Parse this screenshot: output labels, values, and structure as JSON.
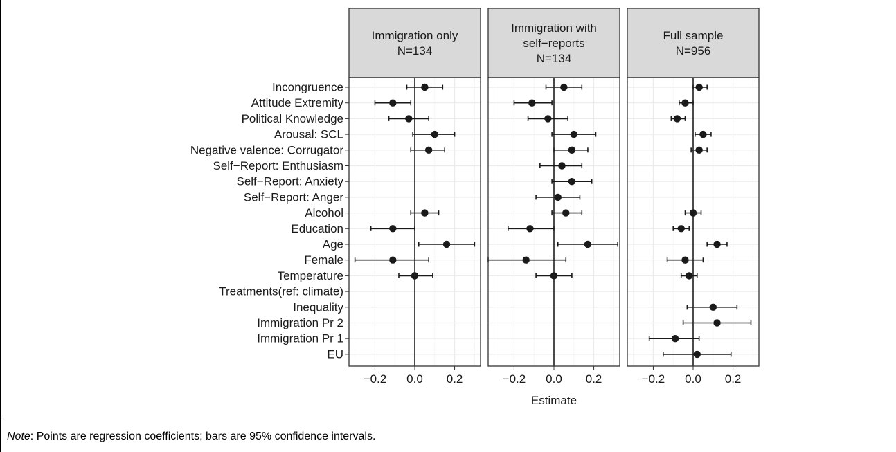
{
  "chart_data": {
    "type": "scatter",
    "subtype": "coefficient-plot",
    "xlabel": "Estimate",
    "xlim": [
      -0.33,
      0.33
    ],
    "xticks": [
      -0.2,
      0.0,
      0.2
    ],
    "xtick_labels": [
      "−0.2",
      "0.0",
      "0.2"
    ],
    "grid": true,
    "reference_line_x": 0,
    "terms": [
      "Incongruence",
      "Attitude Extremity",
      "Political Knowledge",
      "Arousal: SCL",
      "Negative valence: Corrugator",
      "Self−Report: Enthusiasm",
      "Self−Report: Anxiety",
      "Self−Report: Anger",
      "Alcohol",
      "Education",
      "Age",
      "Female",
      "Temperature",
      "Treatments(ref: climate)",
      "Inequality",
      "Immigration Pr 2",
      "Immigration Pr 1",
      "EU"
    ],
    "panels": [
      {
        "title_lines": [
          "Immigration only",
          "N=134"
        ],
        "estimates": [
          {
            "term": "Incongruence",
            "estimate": 0.05,
            "low": -0.04,
            "high": 0.14
          },
          {
            "term": "Attitude Extremity",
            "estimate": -0.11,
            "low": -0.2,
            "high": -0.02
          },
          {
            "term": "Political Knowledge",
            "estimate": -0.03,
            "low": -0.13,
            "high": 0.07
          },
          {
            "term": "Arousal: SCL",
            "estimate": 0.1,
            "low": -0.01,
            "high": 0.2
          },
          {
            "term": "Negative valence: Corrugator",
            "estimate": 0.07,
            "low": -0.02,
            "high": 0.15
          },
          {
            "term": "Alcohol",
            "estimate": 0.05,
            "low": -0.02,
            "high": 0.12
          },
          {
            "term": "Education",
            "estimate": -0.11,
            "low": -0.22,
            "high": 0.0
          },
          {
            "term": "Age",
            "estimate": 0.16,
            "low": 0.02,
            "high": 0.3
          },
          {
            "term": "Female",
            "estimate": -0.11,
            "low": -0.3,
            "high": 0.07
          },
          {
            "term": "Temperature",
            "estimate": 0.0,
            "low": -0.08,
            "high": 0.09
          }
        ]
      },
      {
        "title_lines": [
          "Immigration with",
          "self−reports",
          "N=134"
        ],
        "estimates": [
          {
            "term": "Incongruence",
            "estimate": 0.05,
            "low": -0.04,
            "high": 0.14
          },
          {
            "term": "Attitude Extremity",
            "estimate": -0.11,
            "low": -0.2,
            "high": -0.01
          },
          {
            "term": "Political Knowledge",
            "estimate": -0.03,
            "low": -0.13,
            "high": 0.07
          },
          {
            "term": "Arousal: SCL",
            "estimate": 0.1,
            "low": -0.01,
            "high": 0.21
          },
          {
            "term": "Negative valence: Corrugator",
            "estimate": 0.09,
            "low": 0.0,
            "high": 0.17
          },
          {
            "term": "Self−Report: Enthusiasm",
            "estimate": 0.04,
            "low": -0.07,
            "high": 0.14
          },
          {
            "term": "Self−Report: Anxiety",
            "estimate": 0.09,
            "low": -0.01,
            "high": 0.19
          },
          {
            "term": "Self−Report: Anger",
            "estimate": 0.02,
            "low": -0.09,
            "high": 0.13
          },
          {
            "term": "Alcohol",
            "estimate": 0.06,
            "low": -0.01,
            "high": 0.14
          },
          {
            "term": "Education",
            "estimate": -0.12,
            "low": -0.23,
            "high": 0.0
          },
          {
            "term": "Age",
            "estimate": 0.17,
            "low": 0.02,
            "high": 0.32
          },
          {
            "term": "Female",
            "estimate": -0.14,
            "low": -0.33,
            "high": 0.06
          },
          {
            "term": "Temperature",
            "estimate": 0.0,
            "low": -0.09,
            "high": 0.09
          }
        ]
      },
      {
        "title_lines": [
          "Full sample",
          "N=956"
        ],
        "estimates": [
          {
            "term": "Incongruence",
            "estimate": 0.03,
            "low": 0.0,
            "high": 0.07
          },
          {
            "term": "Attitude Extremity",
            "estimate": -0.04,
            "low": -0.07,
            "high": 0.0
          },
          {
            "term": "Political Knowledge",
            "estimate": -0.08,
            "low": -0.11,
            "high": -0.04
          },
          {
            "term": "Arousal: SCL",
            "estimate": 0.05,
            "low": 0.01,
            "high": 0.09
          },
          {
            "term": "Negative valence: Corrugator",
            "estimate": 0.03,
            "low": -0.01,
            "high": 0.07
          },
          {
            "term": "Alcohol",
            "estimate": 0.0,
            "low": -0.04,
            "high": 0.04
          },
          {
            "term": "Education",
            "estimate": -0.06,
            "low": -0.1,
            "high": -0.02
          },
          {
            "term": "Age",
            "estimate": 0.12,
            "low": 0.07,
            "high": 0.17
          },
          {
            "term": "Female",
            "estimate": -0.04,
            "low": -0.13,
            "high": 0.05
          },
          {
            "term": "Temperature",
            "estimate": -0.02,
            "low": -0.06,
            "high": 0.02
          },
          {
            "term": "Inequality",
            "estimate": 0.1,
            "low": -0.03,
            "high": 0.22
          },
          {
            "term": "Immigration Pr 2",
            "estimate": 0.12,
            "low": -0.05,
            "high": 0.29
          },
          {
            "term": "Immigration Pr 1",
            "estimate": -0.09,
            "low": -0.22,
            "high": 0.03
          },
          {
            "term": "EU",
            "estimate": 0.02,
            "low": -0.15,
            "high": 0.19
          }
        ]
      }
    ]
  },
  "note": {
    "label": "Note",
    "text": ": Points are regression coefficients; bars are 95% confidence intervals."
  }
}
